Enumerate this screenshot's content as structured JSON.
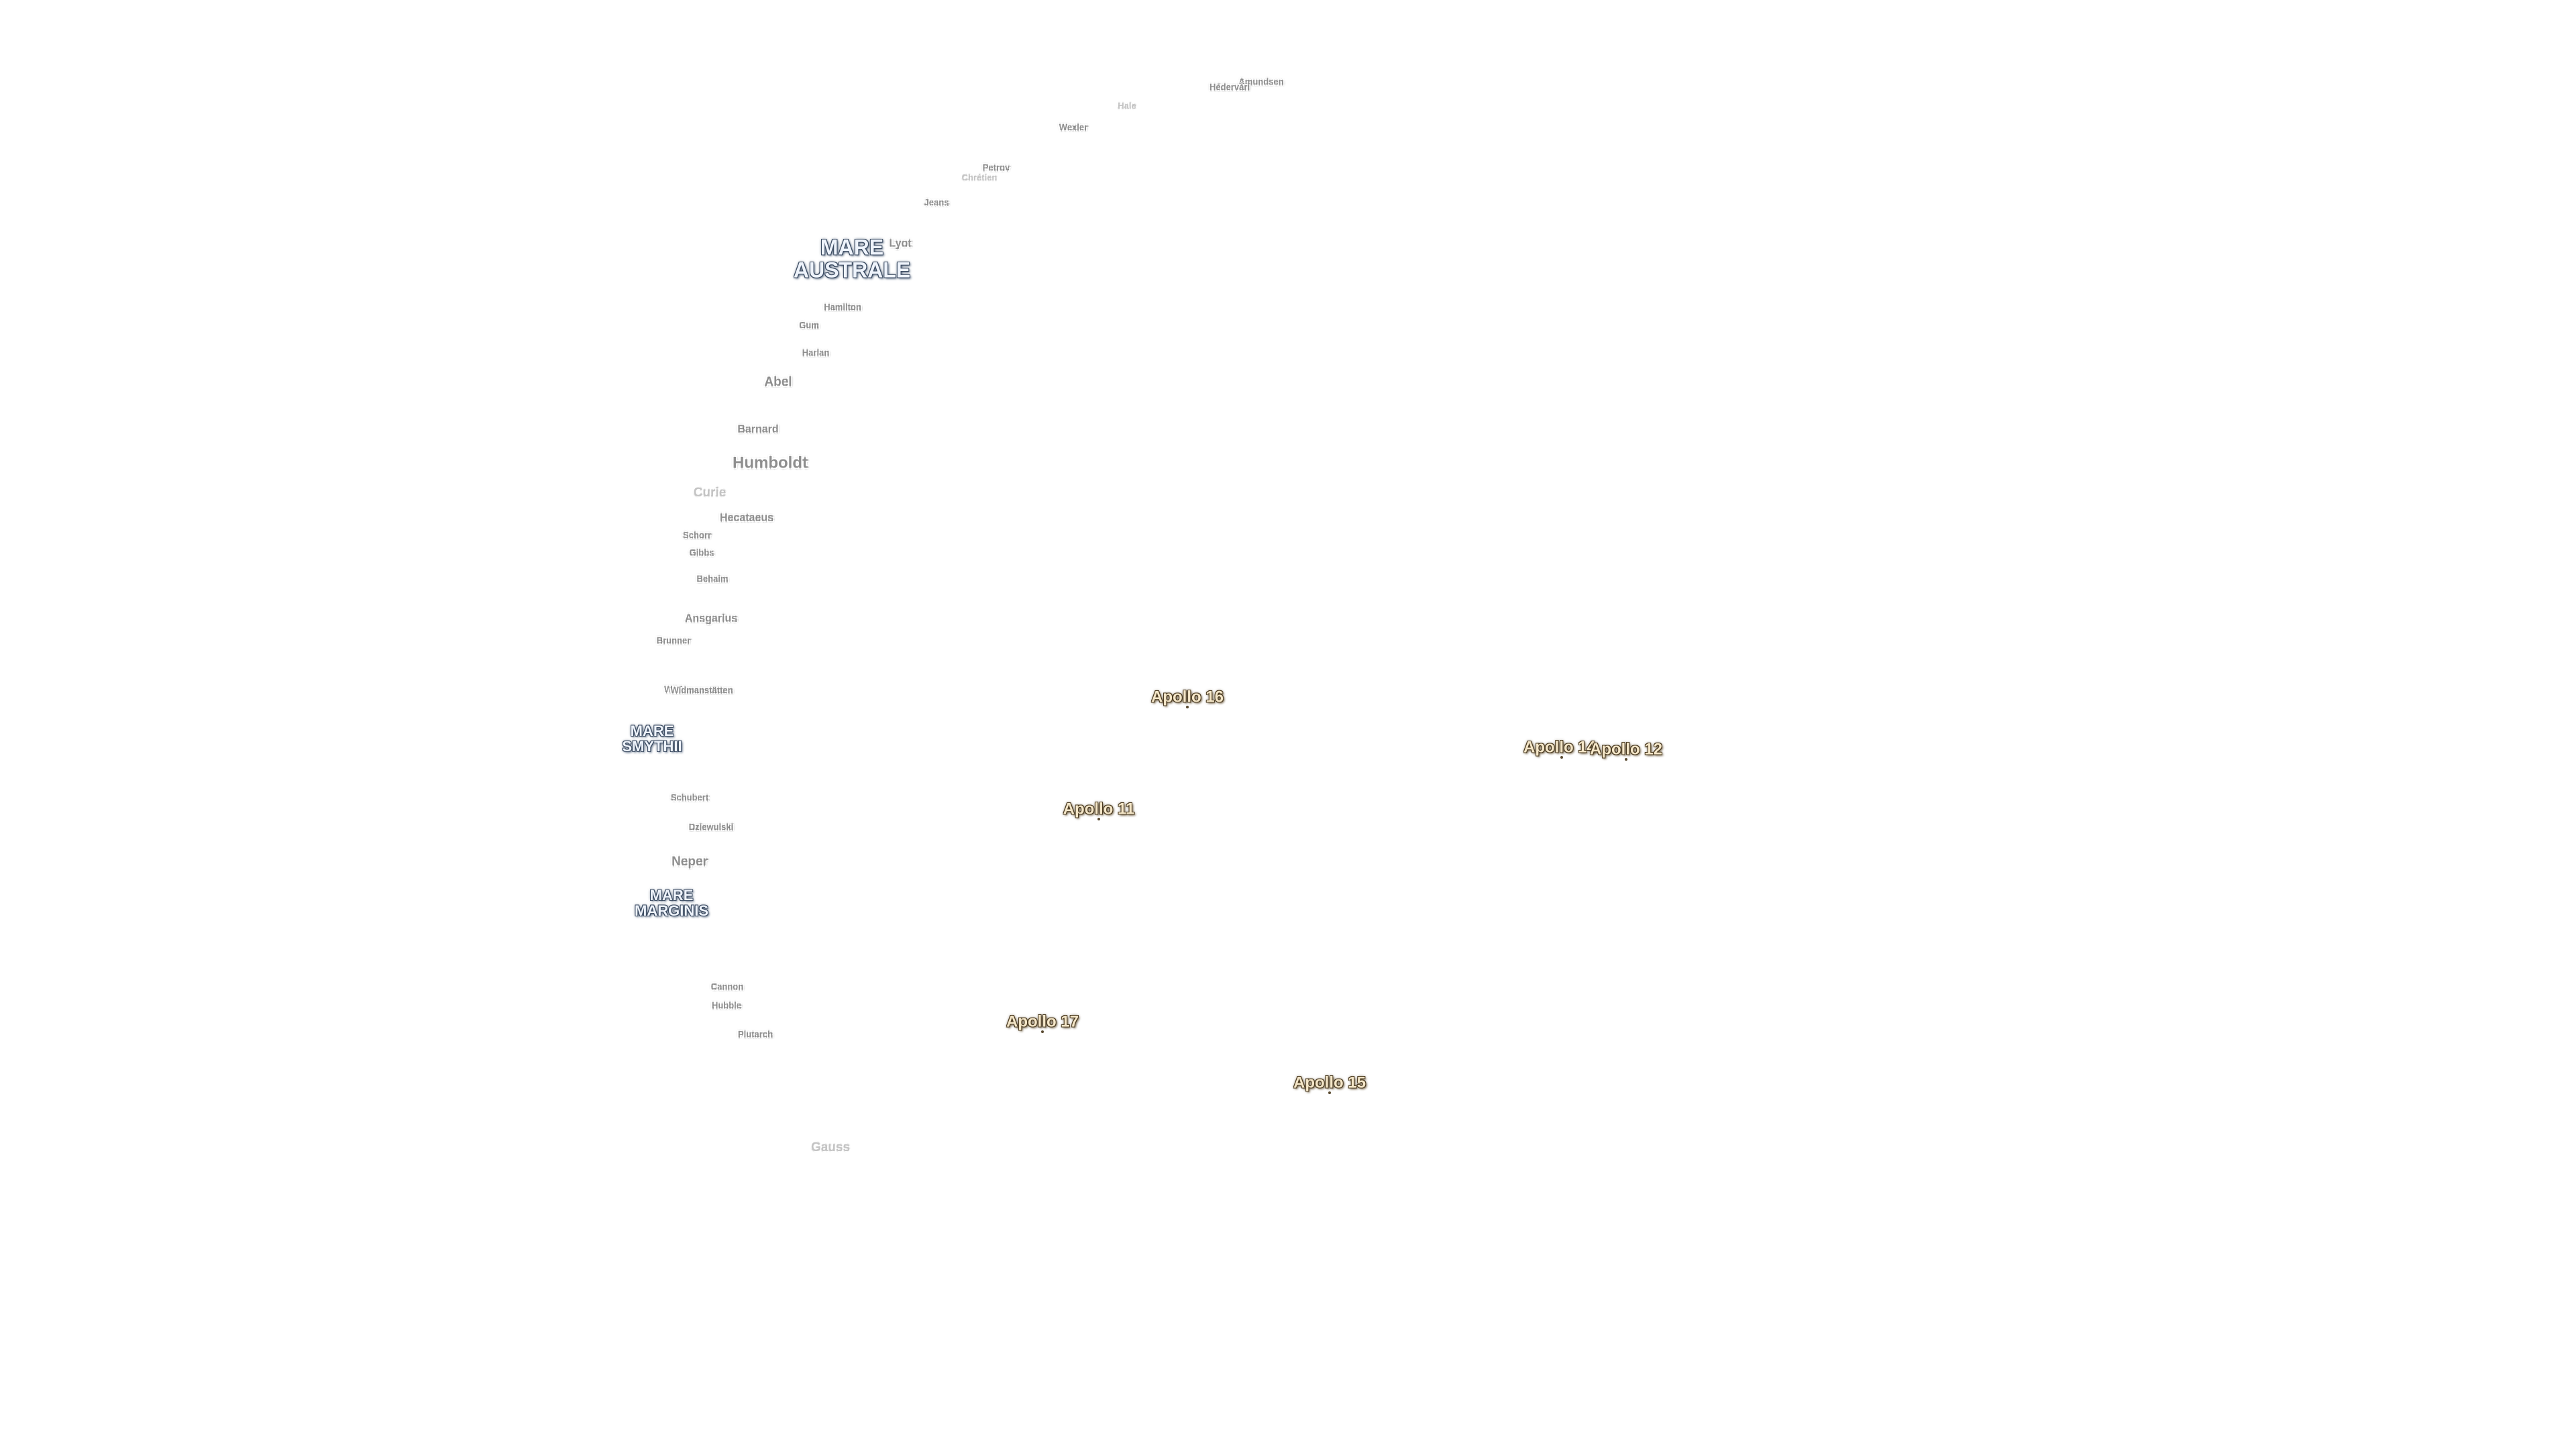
{
  "map": {
    "background": "#ffffff",
    "colors": {
      "crater_text": "#8e8e8e",
      "mare_text": "#eef3fb",
      "apollo_text": "#f4e6c8"
    },
    "craters": [
      {
        "name": "Amundsen"
      },
      {
        "name": "Hédervári"
      },
      {
        "name": "Hale"
      },
      {
        "name": "Wexler"
      },
      {
        "name": "Petrov"
      },
      {
        "name": "Chrétien"
      },
      {
        "name": "Jeans"
      },
      {
        "name": "Lyot"
      },
      {
        "name": "Hamilton"
      },
      {
        "name": "Gum"
      },
      {
        "name": "Harlan"
      },
      {
        "name": "Abel"
      },
      {
        "name": "Barnard"
      },
      {
        "name": "Humboldt"
      },
      {
        "name": "Curie"
      },
      {
        "name": "Hecataeus"
      },
      {
        "name": "Schorr"
      },
      {
        "name": "Gibbs"
      },
      {
        "name": "Behaim"
      },
      {
        "name": "Ansgarius"
      },
      {
        "name": "Brunner"
      },
      {
        "name": "Wildt"
      },
      {
        "name": "Widmanstätten"
      },
      {
        "name": "Schubert"
      },
      {
        "name": "Dziewulski"
      },
      {
        "name": "Neper"
      },
      {
        "name": "Cannon"
      },
      {
        "name": "Hubble"
      },
      {
        "name": "Plutarch"
      },
      {
        "name": "Gauss"
      }
    ],
    "maria": [
      {
        "line1": "MARE",
        "line2": "AUSTRALE"
      },
      {
        "line1": "MARE",
        "line2": "SMYTHII"
      },
      {
        "line1": "MARE",
        "line2": "MARGINIS"
      }
    ],
    "apollo": [
      {
        "name": "Apollo 16"
      },
      {
        "name": "Apollo 14"
      },
      {
        "name": "Apollo 12"
      },
      {
        "name": "Apollo 11"
      },
      {
        "name": "Apollo 17"
      },
      {
        "name": "Apollo 15"
      }
    ]
  }
}
